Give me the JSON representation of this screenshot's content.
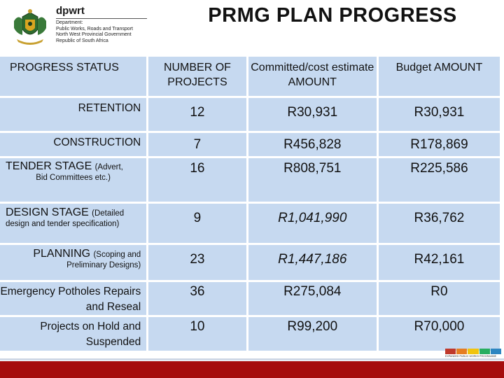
{
  "header": {
    "brand": "dpwrt",
    "department_lines": [
      "Department:",
      "Public Works, Roads and Transport",
      "North West Provincial Government",
      "Republic of South Africa"
    ],
    "title": "PRMG PLAN PROGRESS"
  },
  "table": {
    "headers": [
      "PROGRESS STATUS",
      "NUMBER OF PROJECTS",
      "Committed/cost estimate  AMOUNT",
      "Budget AMOUNT"
    ],
    "rows": [
      {
        "status": "RETENTION",
        "note": "",
        "count": "12",
        "committed": "R30,931",
        "budget": "R30,931"
      },
      {
        "status": "CONSTRUCTION",
        "note": "",
        "count": "7",
        "committed": "R456,828",
        "budget": "R178,869"
      },
      {
        "status": "TENDER STAGE",
        "note_inline": "(Advert,",
        "note": "Bid Committees etc.)",
        "count": "16",
        "committed": "R808,751",
        "budget": "R225,586"
      },
      {
        "status": "DESIGN STAGE",
        "note_inline": "(Detailed",
        "note": "design and tender specification)",
        "count": "9",
        "committed": "R1,041,990",
        "budget": "R36,762"
      },
      {
        "status": "PLANNING",
        "note_inline": "(Scoping and",
        "note": "Preliminary Designs)",
        "count": "23",
        "committed": "R1,447,186",
        "budget": "R42,161"
      },
      {
        "status": "Emergency  Potholes Repairs and Reseal",
        "note": "",
        "count": "36",
        "committed": "R275,084",
        "budget": "R0"
      },
      {
        "status": "Projects on Hold and Suspended",
        "note": "",
        "count": "10",
        "committed": "R99,200",
        "budget": "R70,000"
      }
    ]
  },
  "footer": {
    "epwp_caption": "EXPANDED PUBLIC WORKS PROGRAMME",
    "bar_color": "#a50d0d"
  },
  "colors": {
    "cell_bg": "#c6d9f0"
  }
}
